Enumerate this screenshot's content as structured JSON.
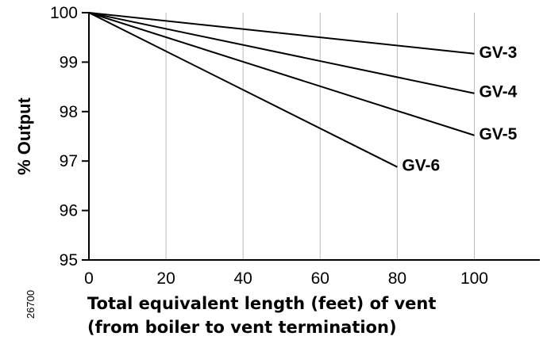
{
  "chart_data": {
    "type": "line",
    "title": "",
    "xlabel_lines": [
      "Total equivalent length (feet) of vent",
      "(from boiler to vent termination)"
    ],
    "ylabel": "% Output",
    "figure_code": "26700",
    "xlim": [
      0,
      117
    ],
    "ylim": [
      95,
      100
    ],
    "xticks": [
      0,
      20,
      40,
      60,
      80,
      100
    ],
    "yticks": [
      95,
      96,
      97,
      98,
      99,
      100
    ],
    "grid": {
      "vertical": true,
      "horizontal": false
    },
    "legend": "none (series labeled at line ends)",
    "colors": {
      "line": "#000000",
      "grid": "#bbbbbb",
      "axis": "#000000"
    },
    "series": [
      {
        "name": "GV-3",
        "x": [
          0,
          100
        ],
        "y": [
          100,
          99.17
        ]
      },
      {
        "name": "GV-4",
        "x": [
          0,
          100
        ],
        "y": [
          100,
          98.37
        ]
      },
      {
        "name": "GV-5",
        "x": [
          0,
          100
        ],
        "y": [
          100,
          97.52
        ]
      },
      {
        "name": "GV-6",
        "x": [
          0,
          80
        ],
        "y": [
          100,
          96.88
        ]
      }
    ]
  }
}
